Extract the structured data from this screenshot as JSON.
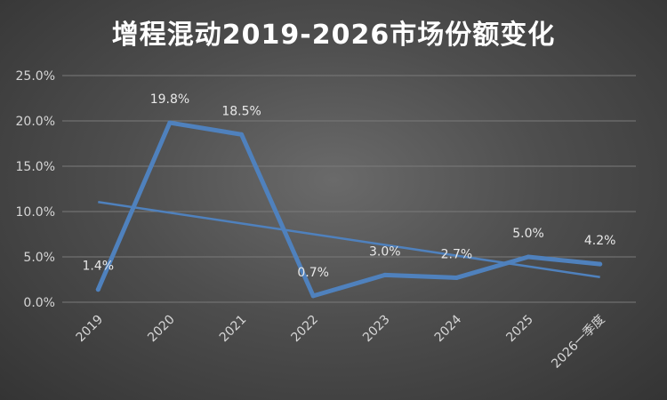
{
  "chart_data": {
    "type": "line",
    "title": "增程混动2019-2026市场份额变化",
    "categories": [
      "2019",
      "2020",
      "2021",
      "2022",
      "2023",
      "2024",
      "2025",
      "2026一季度"
    ],
    "series": [
      {
        "values": [
          1.4,
          19.8,
          18.5,
          0.7,
          3.0,
          2.7,
          5.0,
          4.2
        ],
        "data_labels": [
          "1.4%",
          "19.8%",
          "18.5%",
          "0.7%",
          "3.0%",
          "2.7%",
          "5.0%",
          "4.2%"
        ],
        "color": "#4f81bd"
      }
    ],
    "trendline": {
      "type": "linear",
      "color": "#4f81bd"
    },
    "y_ticks": [
      "0.0%",
      "5.0%",
      "10.0%",
      "15.0%",
      "20.0%",
      "25.0%"
    ],
    "ylim": [
      0,
      25
    ],
    "grid": true,
    "legend": "none",
    "xlabel": "",
    "ylabel": ""
  }
}
